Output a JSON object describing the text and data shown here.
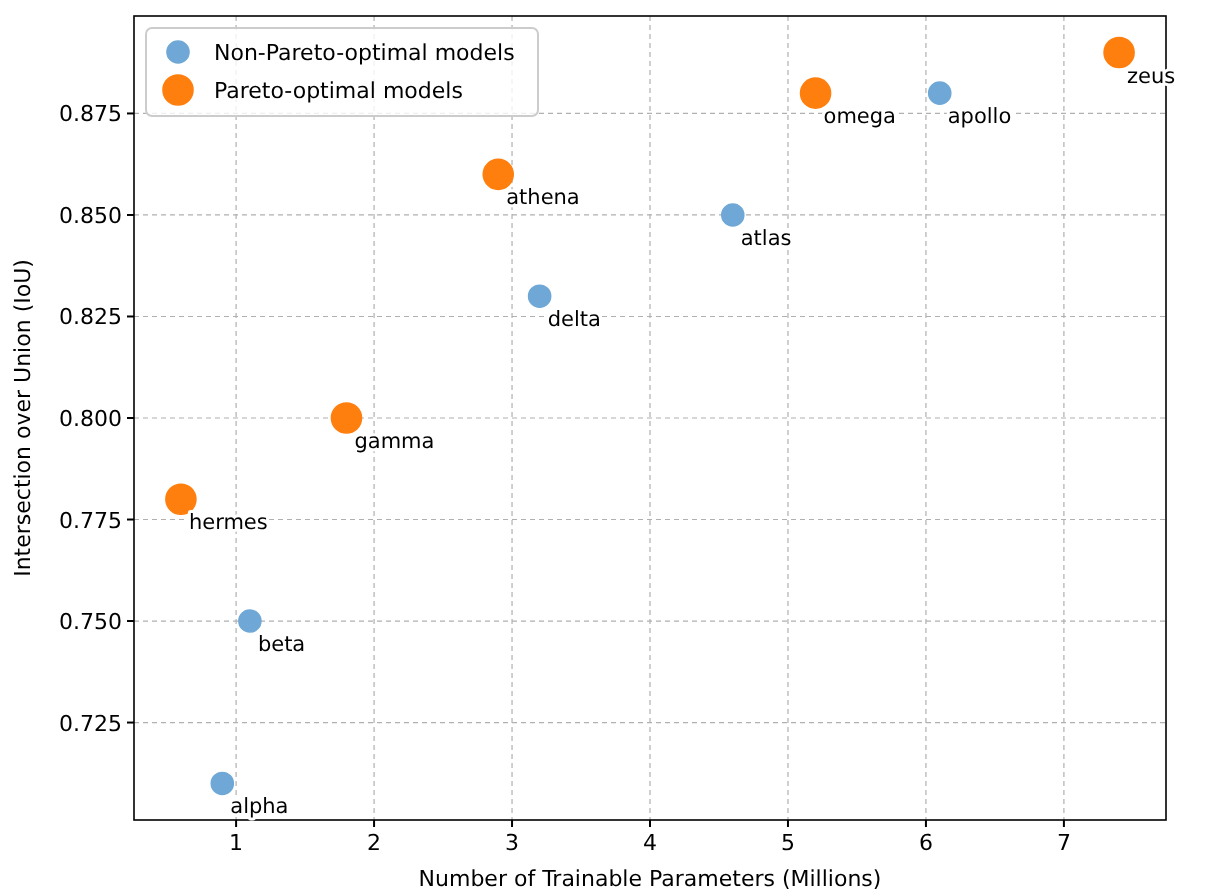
{
  "chart_data": {
    "type": "scatter",
    "xlabel": "Number of Trainable Parameters (Millions)",
    "ylabel": "Intersection over Union (IoU)",
    "xlim": [
      0.26,
      7.74
    ],
    "ylim": [
      0.701,
      0.899
    ],
    "xticks": [
      1,
      2,
      3,
      4,
      5,
      6,
      7
    ],
    "yticks": [
      0.725,
      {
        "value": 0.75,
        "label": "0.750"
      },
      0.775,
      {
        "value": 0.8,
        "label": "0.800"
      },
      0.825,
      {
        "value": 0.85,
        "label": "0.850"
      },
      0.875
    ],
    "grid": true,
    "legend": "top left",
    "marker": "circle",
    "series": [
      {
        "name": "Non-Pareto-optimal models",
        "color": "#6fa8d6",
        "x": [
          0.9,
          1.1,
          3.2,
          4.6,
          6.1
        ],
        "values": [
          0.71,
          0.75,
          0.83,
          0.85,
          0.88
        ]
      },
      {
        "name": "Pareto-optimal models",
        "color": "#ff7f0e",
        "x": [
          0.6,
          1.8,
          2.9,
          5.2,
          7.4
        ],
        "values": [
          0.78,
          0.8,
          0.86,
          0.88,
          0.89
        ]
      }
    ],
    "annotations": [
      {
        "text": "alpha",
        "x": 0.9,
        "y": 0.71
      },
      {
        "text": "beta",
        "x": 1.1,
        "y": 0.75
      },
      {
        "text": "delta",
        "x": 3.2,
        "y": 0.83
      },
      {
        "text": "atlas",
        "x": 4.6,
        "y": 0.85
      },
      {
        "text": "apollo",
        "x": 6.1,
        "y": 0.88
      },
      {
        "text": "hermes",
        "x": 0.6,
        "y": 0.78
      },
      {
        "text": "gamma",
        "x": 1.8,
        "y": 0.8
      },
      {
        "text": "athena",
        "x": 2.9,
        "y": 0.86
      },
      {
        "text": "omega",
        "x": 5.2,
        "y": 0.88
      },
      {
        "text": "zeus",
        "x": 7.4,
        "y": 0.89
      }
    ]
  }
}
